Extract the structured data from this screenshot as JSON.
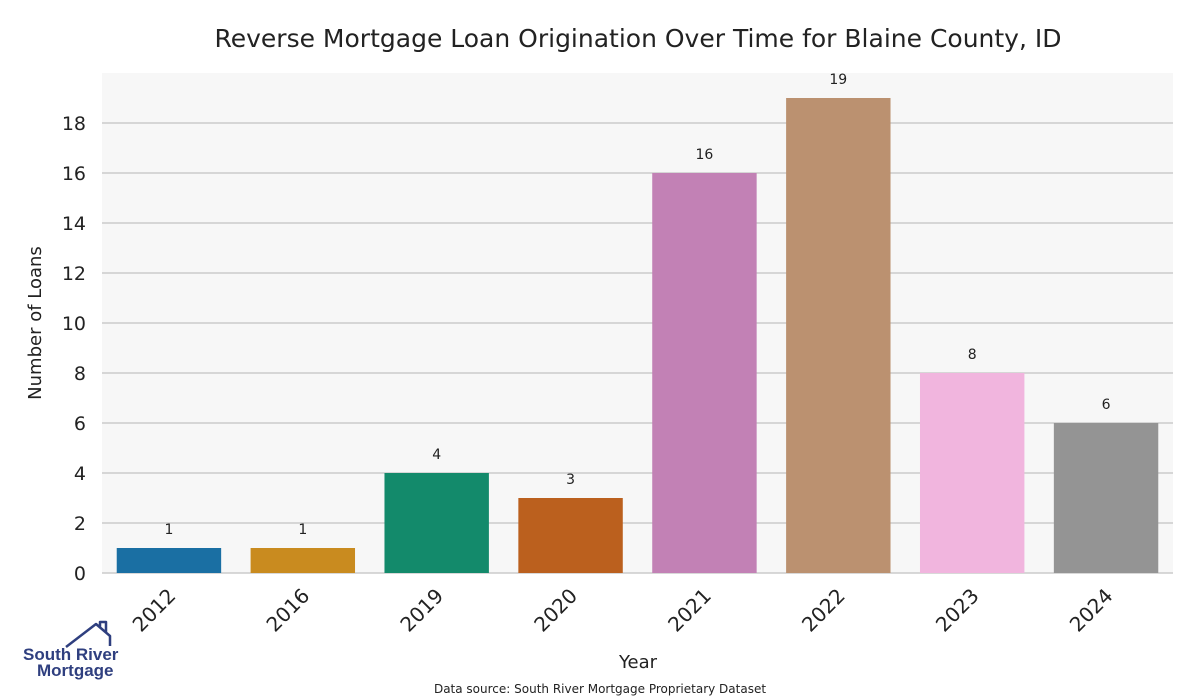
{
  "chart_data": {
    "type": "bar",
    "title": "Reverse Mortgage Loan Origination Over Time for Blaine County, ID",
    "xlabel": "Year",
    "ylabel": "Number of Loans",
    "categories": [
      "2012",
      "2016",
      "2019",
      "2020",
      "2021",
      "2022",
      "2023",
      "2024"
    ],
    "values": [
      1,
      1,
      4,
      3,
      16,
      19,
      8,
      6
    ],
    "data_labels": [
      "1",
      "1",
      "4",
      "3",
      "16",
      "19",
      "8",
      "6"
    ],
    "colors": [
      "#1a6fa3",
      "#c98b1f",
      "#138a6b",
      "#bb601e",
      "#c281b5",
      "#bb9170",
      "#f1b5de",
      "#949494"
    ],
    "ylim": [
      0,
      20
    ],
    "yticks": [
      0,
      2,
      4,
      6,
      8,
      10,
      12,
      14,
      16,
      18
    ],
    "grid": true,
    "plot_background": "#f7f7f7",
    "grid_color": "#cccccc"
  },
  "source_note": "Data source: South River Mortgage Proprietary Dataset",
  "logo": {
    "line1": "South River",
    "line2": "Mortgage",
    "color": "#2f3f7f",
    "icon": "house-roof-icon"
  }
}
